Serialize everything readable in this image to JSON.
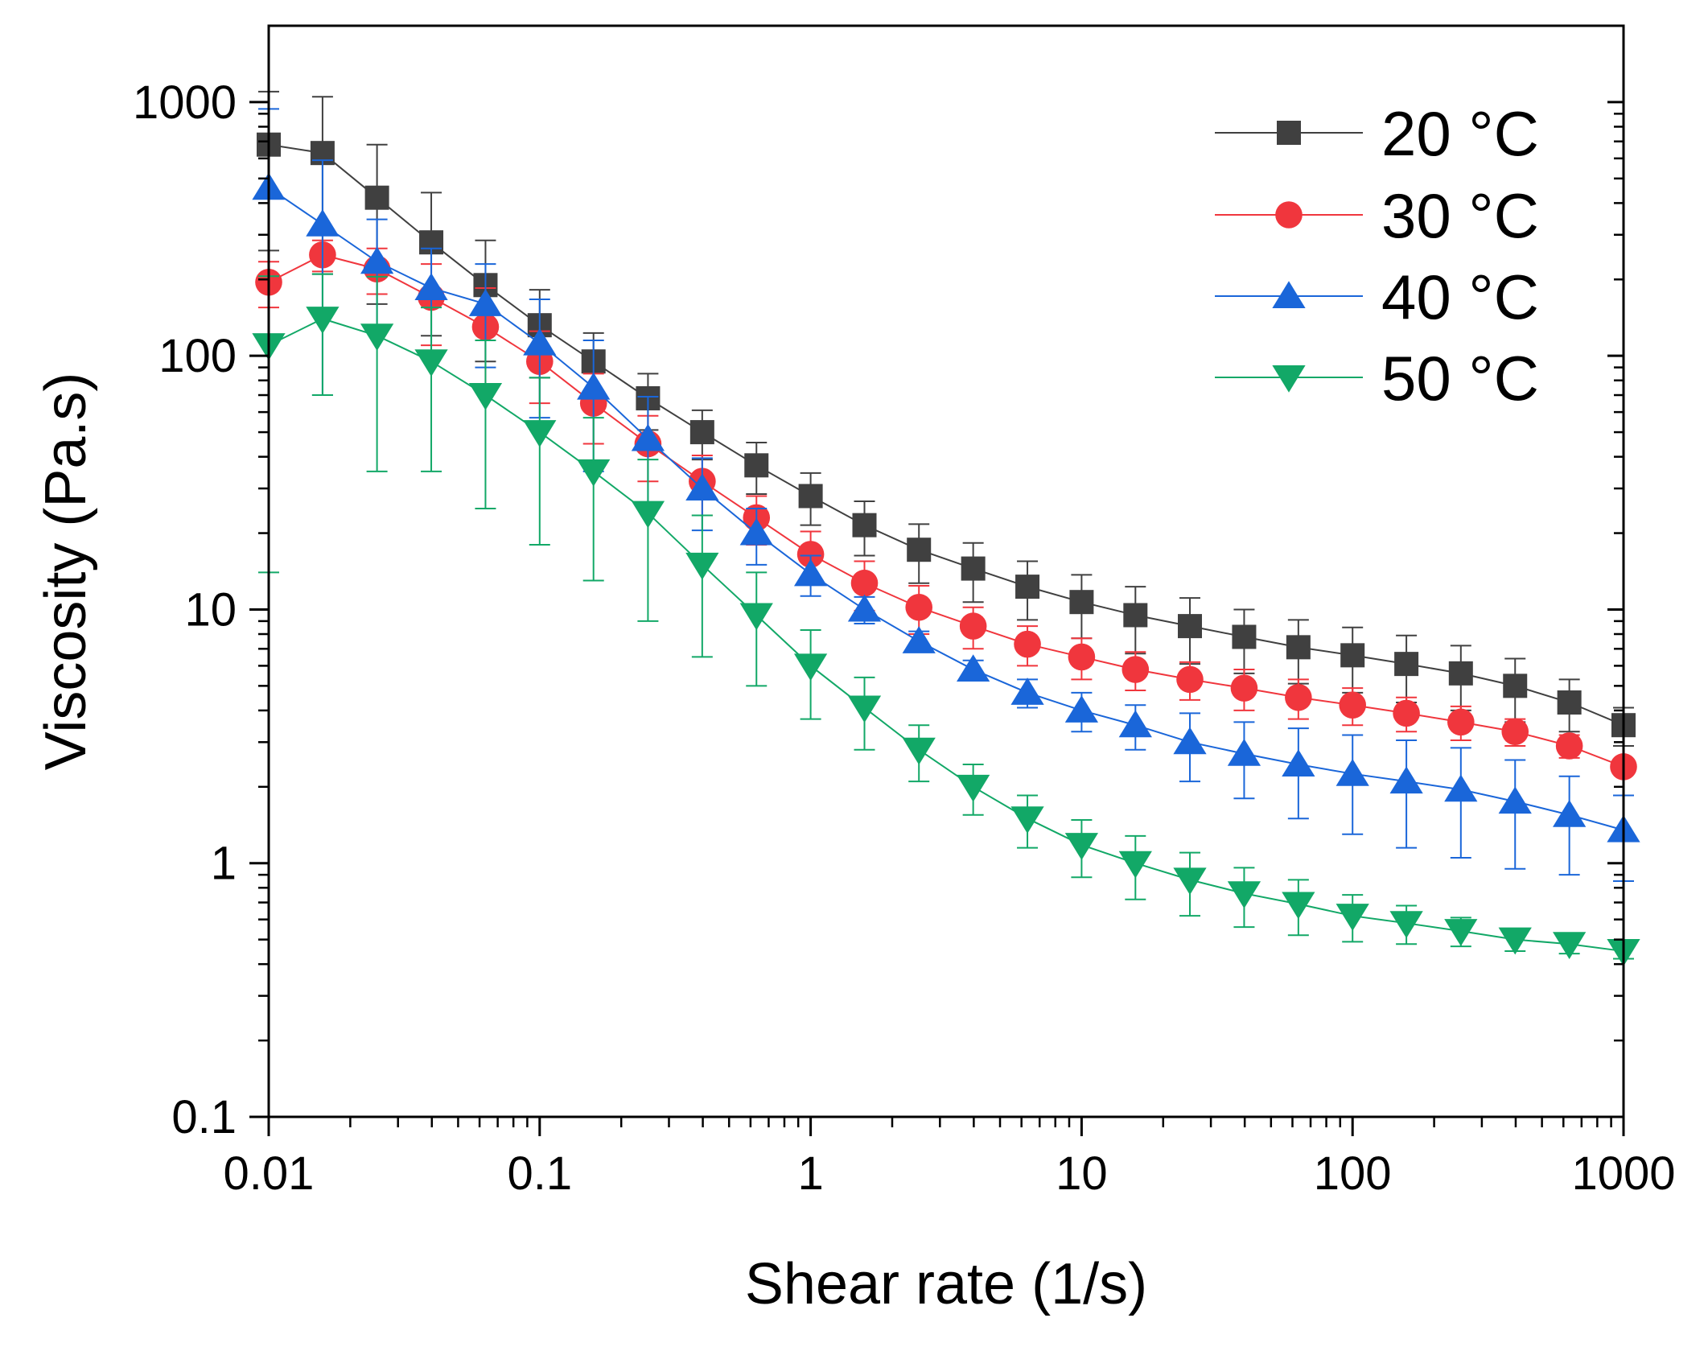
{
  "chart_data": {
    "type": "line",
    "title": "",
    "xlabel": "Shear rate (1/s)",
    "ylabel": "Viscosity (Pa.s)",
    "xscale": "log",
    "yscale": "log",
    "xlim": [
      0.01,
      1000
    ],
    "ylim": [
      0.1,
      2000
    ],
    "xticks": [
      {
        "value": 0.01,
        "label": "0.01"
      },
      {
        "value": 0.1,
        "label": "0.1"
      },
      {
        "value": 1,
        "label": "1"
      },
      {
        "value": 10,
        "label": "10"
      },
      {
        "value": 100,
        "label": "100"
      },
      {
        "value": 1000,
        "label": "1000"
      }
    ],
    "yticks": [
      {
        "value": 0.1,
        "label": "0.1"
      },
      {
        "value": 1,
        "label": "1"
      },
      {
        "value": 10,
        "label": "10"
      },
      {
        "value": 100,
        "label": "100"
      },
      {
        "value": 1000,
        "label": "1000"
      }
    ],
    "legend_position": "top-right",
    "x": [
      0.01,
      0.0158,
      0.0251,
      0.0398,
      0.0631,
      0.1,
      0.158,
      0.251,
      0.398,
      0.631,
      1,
      1.58,
      2.51,
      3.98,
      6.31,
      10,
      15.8,
      25.1,
      39.8,
      63.1,
      100,
      158,
      251,
      398,
      631,
      1000
    ],
    "series": [
      {
        "name": "20 °C",
        "color": "#404040",
        "marker": "square",
        "values": [
          680,
          630,
          420,
          280,
          190,
          132,
          95,
          68,
          50,
          37,
          28,
          21.5,
          17.2,
          14.5,
          12.3,
          10.7,
          9.5,
          8.6,
          7.8,
          7.1,
          6.6,
          6.1,
          5.6,
          5.0,
          4.3,
          3.5
        ],
        "errors": [
          420,
          420,
          260,
          160,
          95,
          50,
          28,
          17,
          11,
          8.5,
          6.5,
          5.2,
          4.5,
          3.8,
          3.2,
          3.0,
          2.8,
          2.5,
          2.2,
          2.0,
          1.9,
          1.8,
          1.6,
          1.4,
          1.0,
          0.6
        ]
      },
      {
        "name": "30 °C",
        "color": "#f0363d",
        "marker": "circle",
        "values": [
          195,
          250,
          220,
          170,
          130,
          95,
          65,
          45,
          32,
          23,
          16.5,
          12.7,
          10.2,
          8.6,
          7.3,
          6.5,
          5.8,
          5.3,
          4.9,
          4.5,
          4.2,
          3.9,
          3.6,
          3.3,
          2.9,
          2.4
        ],
        "errors": [
          40,
          35,
          45,
          60,
          55,
          30,
          20,
          13,
          8.5,
          5.0,
          3.8,
          2.8,
          2.2,
          1.6,
          1.3,
          1.2,
          1.0,
          0.9,
          0.9,
          0.8,
          0.7,
          0.6,
          0.55,
          0.4,
          0.3,
          0.15
        ]
      },
      {
        "name": "40 °C",
        "color": "#1a66d9",
        "marker": "triangle-up",
        "values": [
          460,
          330,
          235,
          185,
          160,
          112,
          75,
          47,
          30,
          20,
          13.8,
          10.0,
          7.5,
          5.8,
          4.7,
          4.0,
          3.5,
          3.0,
          2.7,
          2.45,
          2.25,
          2.1,
          1.95,
          1.75,
          1.55,
          1.35
        ],
        "errors": [
          480,
          260,
          110,
          80,
          70,
          55,
          40,
          22,
          9.5,
          5.0,
          2.5,
          1.2,
          0.7,
          0.5,
          0.6,
          0.7,
          0.7,
          0.9,
          0.9,
          0.95,
          0.95,
          0.95,
          0.9,
          0.8,
          0.65,
          0.5
        ]
      },
      {
        "name": "50 °C",
        "color": "#12a867",
        "marker": "triangle-down",
        "values": [
          110,
          140,
          120,
          95,
          70,
          50,
          35,
          24,
          15,
          9.5,
          6.0,
          4.1,
          2.8,
          2.0,
          1.5,
          1.18,
          1.0,
          0.86,
          0.76,
          0.69,
          0.62,
          0.58,
          0.54,
          0.5,
          0.48,
          0.45
        ],
        "errors": [
          96,
          70,
          85,
          60,
          45,
          32,
          22,
          15,
          8.5,
          4.5,
          2.3,
          1.3,
          0.7,
          0.45,
          0.35,
          0.3,
          0.28,
          0.24,
          0.2,
          0.17,
          0.13,
          0.1,
          0.07,
          0.05,
          0.04,
          0.03
        ]
      }
    ]
  }
}
